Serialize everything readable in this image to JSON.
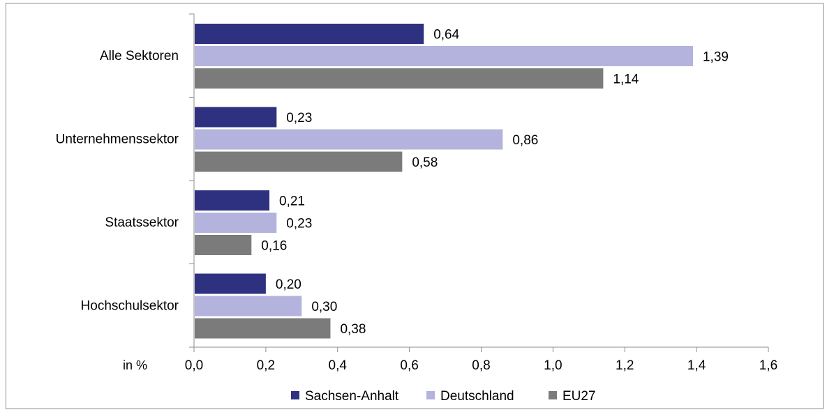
{
  "chart_data": {
    "type": "bar",
    "orientation": "horizontal",
    "categories": [
      "Alle Sektoren",
      "Unternehmenssektor",
      "Staatssektor",
      "Hochschulsektor"
    ],
    "series": [
      {
        "name": "Sachsen-Anhalt",
        "color": "#2e3080",
        "values": [
          0.64,
          0.23,
          0.21,
          0.2
        ],
        "labels": [
          "0,64",
          "0,23",
          "0,21",
          "0,20"
        ]
      },
      {
        "name": "Deutschland",
        "color": "#b3b3dd",
        "values": [
          1.39,
          0.86,
          0.23,
          0.3
        ],
        "labels": [
          "1,39",
          "0,86",
          "0,23",
          "0,30"
        ]
      },
      {
        "name": "EU27",
        "color": "#7b7b7b",
        "values": [
          1.14,
          0.58,
          0.16,
          0.38
        ],
        "labels": [
          "1,14",
          "0,58",
          "0,16",
          "0,38"
        ]
      }
    ],
    "xlim": [
      0,
      1.6
    ],
    "xticks": [
      0,
      0.2,
      0.4,
      0.6,
      0.8,
      1.0,
      1.2,
      1.4,
      1.6
    ],
    "xtick_labels": [
      "0,0",
      "0,2",
      "0,4",
      "0,6",
      "0,8",
      "1,0",
      "1,2",
      "1,4",
      "1,6"
    ],
    "unit_label": "in %",
    "grid": false,
    "legend_position": "bottom"
  }
}
